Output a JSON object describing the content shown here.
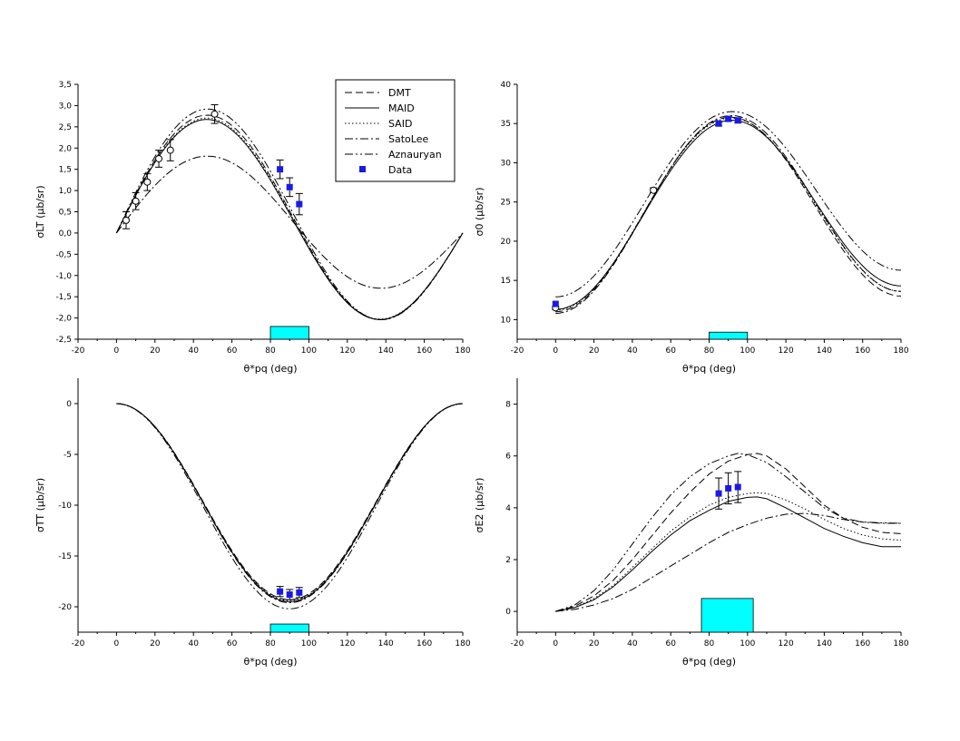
{
  "chart_data": [
    {
      "type": "line",
      "ylabel": "σLT (μb/sr)",
      "xlabel": "θ*pq (deg)",
      "xlim": [
        -20,
        180
      ],
      "ylim": [
        -2.5,
        3.5
      ],
      "xticks": [
        -20,
        0,
        20,
        40,
        60,
        80,
        100,
        120,
        140,
        160,
        180
      ],
      "yticks": [
        -2.5,
        -2.0,
        -1.5,
        -1.0,
        -0.5,
        0.0,
        0.5,
        1.0,
        1.5,
        2.0,
        2.5,
        3.0,
        3.5
      ],
      "ytick_labels": [
        "-2,5",
        "-2,0",
        "-1,5",
        "-1,0",
        "-0,5",
        "0,0",
        "0,5",
        "1,0",
        "1,5",
        "2,0",
        "2,5",
        "3,0",
        "3,5"
      ],
      "model_form": "a*sin(x)+b*sin(2x)",
      "series": [
        {
          "name": "DMT",
          "a": 0.52,
          "b": 2.4
        },
        {
          "name": "MAID",
          "a": 0.45,
          "b": 2.35
        },
        {
          "name": "SAID",
          "a": 0.48,
          "b": 2.36
        },
        {
          "name": "SatoLee",
          "a": 0.36,
          "b": 1.55
        },
        {
          "name": "Aznauryan",
          "a": 0.62,
          "b": 2.47
        }
      ],
      "points_open": [
        {
          "x": 5,
          "y": 0.3,
          "err": 0.2
        },
        {
          "x": 10,
          "y": 0.75,
          "err": 0.2
        },
        {
          "x": 16,
          "y": 1.2,
          "err": 0.2
        },
        {
          "x": 22,
          "y": 1.75,
          "err": 0.2
        },
        {
          "x": 28,
          "y": 1.95,
          "err": 0.25
        },
        {
          "x": 51,
          "y": 2.8,
          "err": 0.22
        }
      ],
      "points_data": [
        {
          "x": 85,
          "y": 1.5,
          "err": 0.22
        },
        {
          "x": 90,
          "y": 1.08,
          "err": 0.22
        },
        {
          "x": 95,
          "y": 0.68,
          "err": 0.25
        }
      ],
      "box": {
        "x0": 80,
        "x1": 100,
        "y0": -2.5,
        "y1": -2.2
      }
    },
    {
      "type": "line",
      "ylabel": "σ0  (μb/sr)",
      "xlabel": "θ*pq (deg)",
      "xlim": [
        -20,
        180
      ],
      "ylim": [
        7.5,
        40
      ],
      "xticks": [
        -20,
        0,
        20,
        40,
        60,
        80,
        100,
        120,
        140,
        160,
        180
      ],
      "yticks": [
        10,
        15,
        20,
        25,
        30,
        35,
        40
      ],
      "ytick_labels": [
        "10",
        "15",
        "20",
        "25",
        "30",
        "35",
        "40"
      ],
      "model_form": "a+b*sin^2(x)+c*cos(x)",
      "series": [
        {
          "name": "DMT",
          "a": 12.0,
          "b": 23.8,
          "c": -1.0
        },
        {
          "name": "MAID",
          "a": 12.8,
          "b": 22.6,
          "c": -1.5
        },
        {
          "name": "SAID",
          "a": 12.4,
          "b": 23.3,
          "c": -1.2
        },
        {
          "name": "SatoLee",
          "a": 12.2,
          "b": 23.8,
          "c": -1.4
        },
        {
          "name": "Aznauryan",
          "a": 14.6,
          "b": 21.9,
          "c": -1.7
        }
      ],
      "points_open": [
        {
          "x": 0,
          "y": 11.5,
          "err": 0.2
        },
        {
          "x": 51,
          "y": 26.5,
          "err": 0.3
        }
      ],
      "points_data": [
        {
          "x": 0,
          "y": 12.0,
          "err": 0.0
        },
        {
          "x": 85,
          "y": 35.0,
          "err": 0.3
        },
        {
          "x": 90,
          "y": 35.6,
          "err": 0.3
        },
        {
          "x": 95,
          "y": 35.4,
          "err": 0.3
        }
      ],
      "box": {
        "x0": 80,
        "x1": 100,
        "y0": 7.5,
        "y1": 8.4
      }
    },
    {
      "type": "line",
      "ylabel": "σTT  (μb/sr)",
      "xlabel": "θ*pq (deg)",
      "xlim": [
        -20,
        180
      ],
      "ylim": [
        -22.5,
        2.5
      ],
      "xticks": [
        -20,
        0,
        20,
        40,
        60,
        80,
        100,
        120,
        140,
        160,
        180
      ],
      "yticks": [
        -20,
        -15,
        -10,
        -5,
        0
      ],
      "ytick_labels": [
        "-20",
        "-15",
        "-10",
        "-5",
        "0"
      ],
      "model_form": "a*sin^2(x)",
      "series": [
        {
          "name": "DMT",
          "a": -19.3
        },
        {
          "name": "MAID",
          "a": -19.5
        },
        {
          "name": "SAID",
          "a": -19.4
        },
        {
          "name": "SatoLee",
          "a": -19.6
        },
        {
          "name": "Aznauryan",
          "a": -20.2
        }
      ],
      "points_data": [
        {
          "x": 85,
          "y": -18.5,
          "err": 0.5
        },
        {
          "x": 90,
          "y": -18.8,
          "err": 0.5
        },
        {
          "x": 95,
          "y": -18.6,
          "err": 0.5
        }
      ],
      "box": {
        "x0": 80,
        "x1": 100,
        "y0": -22.5,
        "y1": -21.7
      }
    },
    {
      "type": "line",
      "ylabel": "σE2  (μb/sr)",
      "xlabel": "θ*pq (deg)",
      "xlim": [
        -20,
        180
      ],
      "ylim": [
        -0.8,
        9
      ],
      "xticks": [
        -20,
        0,
        20,
        40,
        60,
        80,
        100,
        120,
        140,
        160,
        180
      ],
      "yticks": [
        0,
        2,
        4,
        6,
        8
      ],
      "ytick_labels": [
        "0",
        "2",
        "4",
        "6",
        "8"
      ],
      "model_form": "points",
      "series": [
        {
          "name": "DMT",
          "points": [
            [
              0,
              0
            ],
            [
              10,
              0.2
            ],
            [
              20,
              0.6
            ],
            [
              30,
              1.2
            ],
            [
              40,
              2.0
            ],
            [
              50,
              2.9
            ],
            [
              60,
              3.8
            ],
            [
              70,
              4.6
            ],
            [
              80,
              5.3
            ],
            [
              90,
              5.8
            ],
            [
              100,
              6.05
            ],
            [
              105,
              6.1
            ],
            [
              110,
              6.0
            ],
            [
              120,
              5.5
            ],
            [
              130,
              4.8
            ],
            [
              140,
              4.1
            ],
            [
              150,
              3.6
            ],
            [
              160,
              3.25
            ],
            [
              170,
              3.05
            ],
            [
              180,
              3.0
            ]
          ]
        },
        {
          "name": "MAID",
          "points": [
            [
              0,
              0
            ],
            [
              10,
              0.15
            ],
            [
              20,
              0.45
            ],
            [
              30,
              0.95
            ],
            [
              40,
              1.6
            ],
            [
              50,
              2.3
            ],
            [
              60,
              2.95
            ],
            [
              70,
              3.5
            ],
            [
              80,
              3.9
            ],
            [
              90,
              4.25
            ],
            [
              100,
              4.4
            ],
            [
              105,
              4.42
            ],
            [
              110,
              4.35
            ],
            [
              120,
              4.0
            ],
            [
              130,
              3.6
            ],
            [
              140,
              3.2
            ],
            [
              150,
              2.9
            ],
            [
              160,
              2.65
            ],
            [
              170,
              2.5
            ],
            [
              180,
              2.5
            ]
          ]
        },
        {
          "name": "SAID",
          "points": [
            [
              0,
              0
            ],
            [
              10,
              0.15
            ],
            [
              20,
              0.5
            ],
            [
              30,
              1.0
            ],
            [
              40,
              1.7
            ],
            [
              50,
              2.4
            ],
            [
              60,
              3.1
            ],
            [
              70,
              3.65
            ],
            [
              80,
              4.1
            ],
            [
              90,
              4.4
            ],
            [
              100,
              4.55
            ],
            [
              105,
              4.58
            ],
            [
              110,
              4.55
            ],
            [
              120,
              4.3
            ],
            [
              130,
              3.95
            ],
            [
              140,
              3.55
            ],
            [
              150,
              3.2
            ],
            [
              160,
              2.95
            ],
            [
              170,
              2.8
            ],
            [
              180,
              2.75
            ]
          ]
        },
        {
          "name": "SatoLee",
          "points": [
            [
              0,
              0
            ],
            [
              10,
              0.08
            ],
            [
              20,
              0.25
            ],
            [
              30,
              0.5
            ],
            [
              40,
              0.85
            ],
            [
              50,
              1.3
            ],
            [
              60,
              1.75
            ],
            [
              70,
              2.2
            ],
            [
              80,
              2.65
            ],
            [
              90,
              3.05
            ],
            [
              100,
              3.35
            ],
            [
              110,
              3.6
            ],
            [
              120,
              3.75
            ],
            [
              130,
              3.78
            ],
            [
              140,
              3.7
            ],
            [
              150,
              3.55
            ],
            [
              160,
              3.45
            ],
            [
              170,
              3.4
            ],
            [
              180,
              3.4
            ]
          ]
        },
        {
          "name": "Aznauryan",
          "points": [
            [
              0,
              0
            ],
            [
              10,
              0.25
            ],
            [
              20,
              0.8
            ],
            [
              30,
              1.6
            ],
            [
              40,
              2.6
            ],
            [
              50,
              3.6
            ],
            [
              60,
              4.5
            ],
            [
              70,
              5.2
            ],
            [
              80,
              5.7
            ],
            [
              90,
              6.0
            ],
            [
              95,
              6.1
            ],
            [
              100,
              6.05
            ],
            [
              110,
              5.75
            ],
            [
              120,
              5.2
            ],
            [
              130,
              4.6
            ],
            [
              140,
              4.0
            ],
            [
              150,
              3.6
            ],
            [
              160,
              3.45
            ],
            [
              170,
              3.42
            ],
            [
              180,
              3.4
            ]
          ]
        }
      ],
      "points_data": [
        {
          "x": 85,
          "y": 4.55,
          "err": 0.6
        },
        {
          "x": 90,
          "y": 4.75,
          "err": 0.6
        },
        {
          "x": 95,
          "y": 4.8,
          "err": 0.6
        }
      ],
      "box": {
        "x0": 76,
        "x1": 103,
        "y0": -0.8,
        "y1": 0.5
      }
    }
  ],
  "legend": {
    "entries": [
      {
        "name": "DMT",
        "dash": "dash"
      },
      {
        "name": "MAID",
        "dash": "solid"
      },
      {
        "name": "SAID",
        "dash": "dot"
      },
      {
        "name": "SatoLee",
        "dash": "dashdot"
      },
      {
        "name": "Aznauryan",
        "dash": "dashdotdot"
      },
      {
        "name": "Data",
        "dash": "marker"
      }
    ]
  },
  "colors": {
    "data_marker": "#1a1ae6",
    "box_fill": "#00ffff",
    "axis": "#000000"
  }
}
